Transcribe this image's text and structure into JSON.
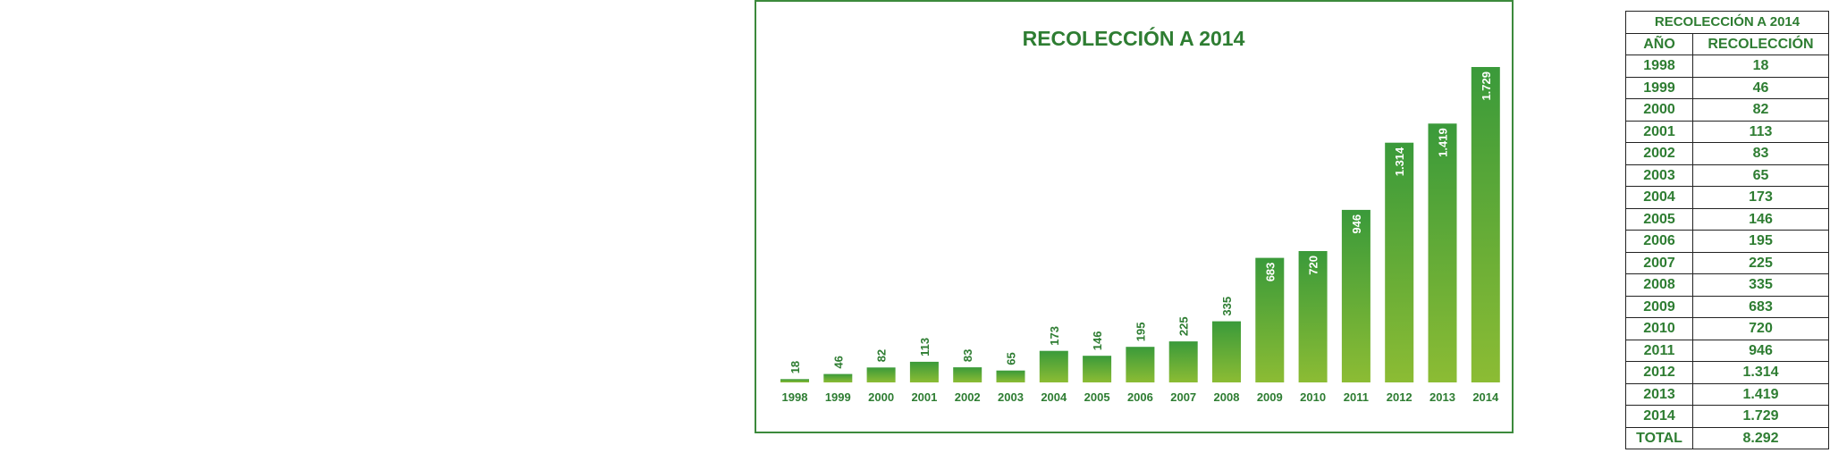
{
  "colors": {
    "accent": "#2e7d32",
    "bar_top": "#3a9a3a",
    "bar_bottom": "#8cbc34",
    "border": "#3c8a3c"
  },
  "chart_data": {
    "type": "bar",
    "title": "RECOLECCIÓN A 2014",
    "categories": [
      "1998",
      "1999",
      "2000",
      "2001",
      "2002",
      "2003",
      "2004",
      "2005",
      "2006",
      "2007",
      "2008",
      "2009",
      "2010",
      "2011",
      "2012",
      "2013",
      "2014"
    ],
    "values": [
      18,
      46,
      82,
      113,
      83,
      65,
      173,
      146,
      195,
      225,
      335,
      683,
      720,
      946,
      1314,
      1419,
      1729
    ],
    "value_labels": [
      "18",
      "46",
      "82",
      "113",
      "83",
      "65",
      "173",
      "146",
      "195",
      "225",
      "335",
      "683",
      "720",
      "946",
      "1.314",
      "1.419",
      "1.729"
    ],
    "xlabel": "",
    "ylabel": "",
    "ylim": [
      0,
      1729
    ],
    "grid": false,
    "legend": "none"
  },
  "table": {
    "title": "RECOLECCIÓN A 2014",
    "headers": [
      "AÑO",
      "RECOLECCIÓN"
    ],
    "rows": [
      [
        "1998",
        "18"
      ],
      [
        "1999",
        "46"
      ],
      [
        "2000",
        "82"
      ],
      [
        "2001",
        "113"
      ],
      [
        "2002",
        "83"
      ],
      [
        "2003",
        "65"
      ],
      [
        "2004",
        "173"
      ],
      [
        "2005",
        "146"
      ],
      [
        "2006",
        "195"
      ],
      [
        "2007",
        "225"
      ],
      [
        "2008",
        "335"
      ],
      [
        "2009",
        "683"
      ],
      [
        "2010",
        "720"
      ],
      [
        "2011",
        "946"
      ],
      [
        "2012",
        "1.314"
      ],
      [
        "2013",
        "1.419"
      ],
      [
        "2014",
        "1.729"
      ]
    ],
    "total_label": "TOTAL",
    "total_value": "8.292"
  }
}
